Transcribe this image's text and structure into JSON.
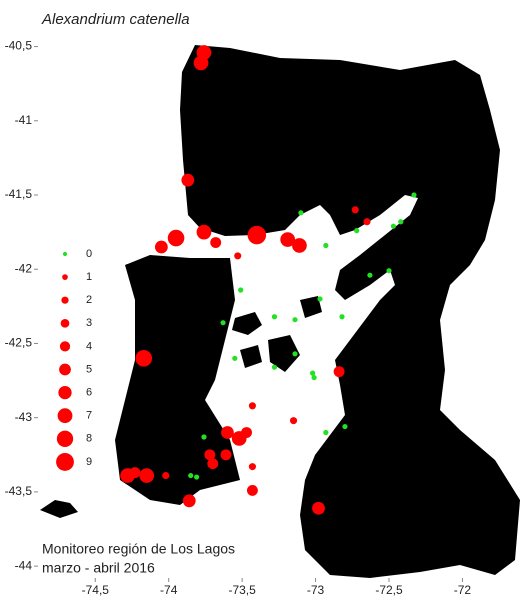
{
  "chart_data": {
    "type": "scatter",
    "title": "Alexandrium catenella",
    "annotations": [
      "Monitoreo región de Los Lagos",
      "marzo - abril 2016"
    ],
    "xlim": [
      -74.89,
      -71.54
    ],
    "ylim": [
      -44.08,
      -40.22
    ],
    "xticks": [
      {
        "value": -74.5,
        "label": "-74,5"
      },
      -74,
      {
        "value": -73.5,
        "label": "-73,5"
      },
      -73,
      {
        "value": -72.5,
        "label": "-72,5"
      },
      -72
    ],
    "yticks": [
      {
        "value": -40.5,
        "label": "-40,5"
      },
      -41,
      {
        "value": -41.5,
        "label": "-41,5"
      },
      -42,
      {
        "value": -42.5,
        "label": "-42,5"
      },
      -43,
      {
        "value": -43.5,
        "label": "-43,5"
      },
      -44
    ],
    "color": "#ff0000",
    "color_zero": "#22e022",
    "legend_levels": [
      0,
      1,
      2,
      3,
      4,
      5,
      6,
      7,
      8,
      9
    ],
    "x": [
      -73.76,
      -73.78,
      -73.87,
      -73.76,
      -73.95,
      -74.05,
      -73.68,
      -73.4,
      -73.53,
      -73.19,
      -73.11,
      -74.17,
      -72.84,
      -72.73,
      -72.65,
      -73.43,
      -73.15,
      -73.6,
      -73.52,
      -73.47,
      -73.72,
      -73.7,
      -73.61,
      -73.43,
      -74.28,
      -74.23,
      -74.15,
      -74.02,
      -73.86,
      -73.43,
      -72.98,
      -72.33,
      -73.1,
      -72.72,
      -72.42,
      -72.47,
      -72.93,
      -72.63,
      -72.5,
      -73.51,
      -72.97,
      -73.28,
      -73.14,
      -72.82,
      -73.63,
      -73.55,
      -73.28,
      -73.14,
      -73.02,
      -73.01,
      -73.76,
      -73.81,
      -73.85,
      -72.93,
      -72.8
    ],
    "y": [
      -40.54,
      -40.61,
      -41.4,
      -41.75,
      -41.79,
      -41.85,
      -41.82,
      -41.77,
      -41.91,
      -41.8,
      -41.84,
      -42.6,
      -42.69,
      -41.6,
      -41.68,
      -42.92,
      -43.02,
      -43.1,
      -43.14,
      -43.1,
      -43.25,
      -43.31,
      -43.25,
      -43.33,
      -43.39,
      -43.37,
      -43.39,
      -43.39,
      -43.56,
      -43.49,
      -43.61,
      -41.5,
      -41.62,
      -41.74,
      -41.68,
      -41.71,
      -41.84,
      -42.04,
      -42.01,
      -42.14,
      -42.2,
      -42.32,
      -42.34,
      -42.32,
      -42.36,
      -42.6,
      -42.66,
      -42.57,
      -42.7,
      -42.73,
      -43.13,
      -43.4,
      -43.39,
      -43.1,
      -43.06
    ],
    "sizes": [
      5,
      5,
      4,
      5,
      6,
      4,
      3,
      7,
      1,
      5,
      5,
      6,
      3,
      1,
      1,
      1,
      1,
      4,
      5,
      3,
      3,
      3,
      3,
      1,
      5,
      3,
      5,
      1,
      4,
      3,
      4,
      0,
      0,
      0,
      0,
      0,
      0,
      0,
      0,
      0,
      0,
      0,
      0,
      0,
      0,
      0,
      0,
      0,
      0,
      0,
      0,
      0,
      0,
      0,
      0
    ]
  }
}
